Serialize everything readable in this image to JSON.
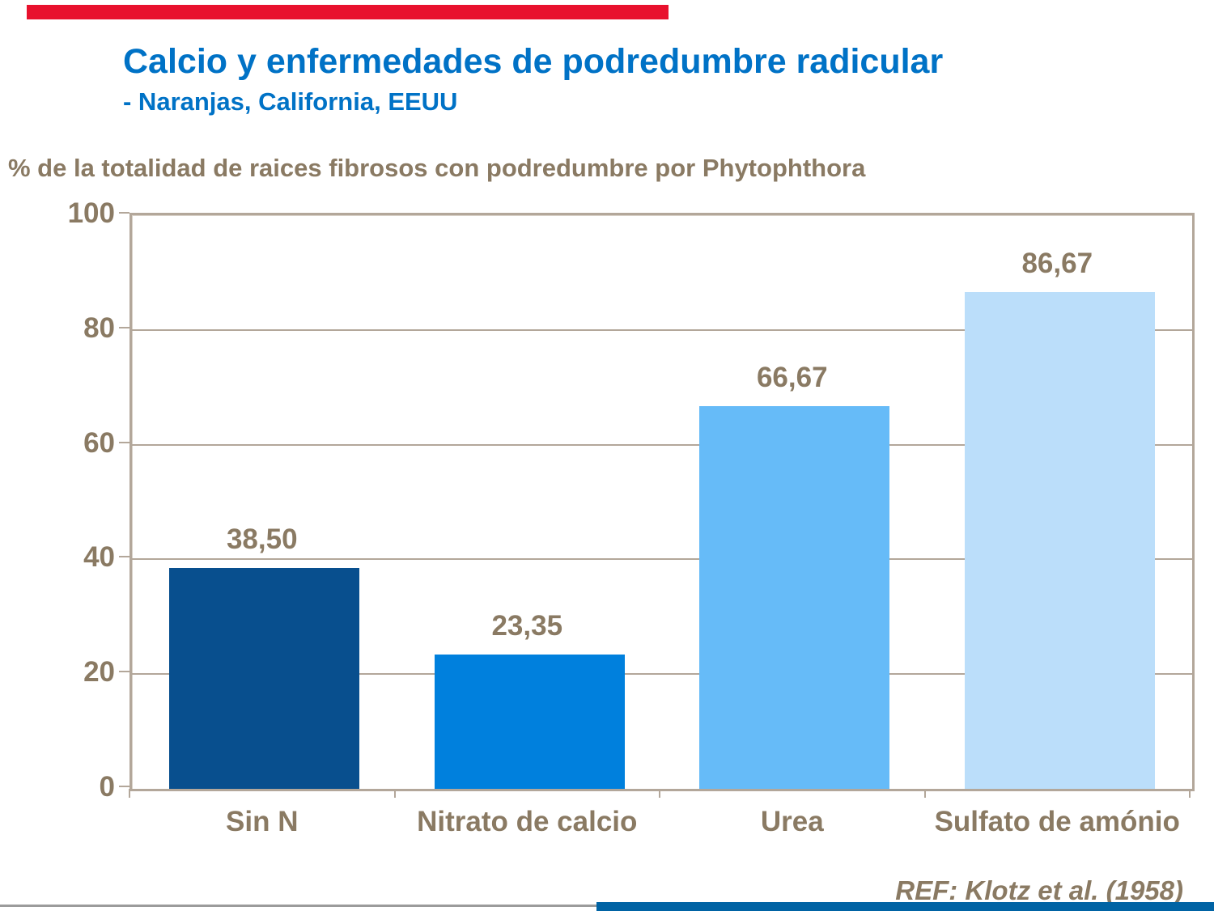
{
  "slide": {
    "title": "Calcio y enfermedades de podredumbre radicular",
    "subtitle": "- Naranjas, California, EEUU",
    "reference": "REF: Klotz et al. (1958)"
  },
  "colors": {
    "title_blue": "#0072c6",
    "text_brown": "#8a7a63",
    "grid_tan": "#b3a79a",
    "deco_red": "#e8112d",
    "deco_blue": "#0063a4",
    "deco_gray": "#9b9b9b"
  },
  "chart_data": {
    "type": "bar",
    "title": "% de la totalidad de raices fibrosos con podredumbre por Phytophthora",
    "ylabel": "% de la totalidad de raices fibrosos con podredumbre por Phytophthora",
    "xlabel": "",
    "categories": [
      "Sin N",
      "Nitrato de calcio",
      "Urea",
      "Sulfato de amónio"
    ],
    "values": [
      38.5,
      23.35,
      66.67,
      86.67
    ],
    "value_labels": [
      "38,50",
      "23,35",
      "66,67",
      "86,67"
    ],
    "bar_colors": [
      "#084f8e",
      "#0080dd",
      "#66bbf8",
      "#bbdefa"
    ],
    "ylim": [
      0,
      100
    ],
    "yticks": [
      0,
      20,
      40,
      60,
      80,
      100
    ],
    "grid": true,
    "legend": "none"
  }
}
